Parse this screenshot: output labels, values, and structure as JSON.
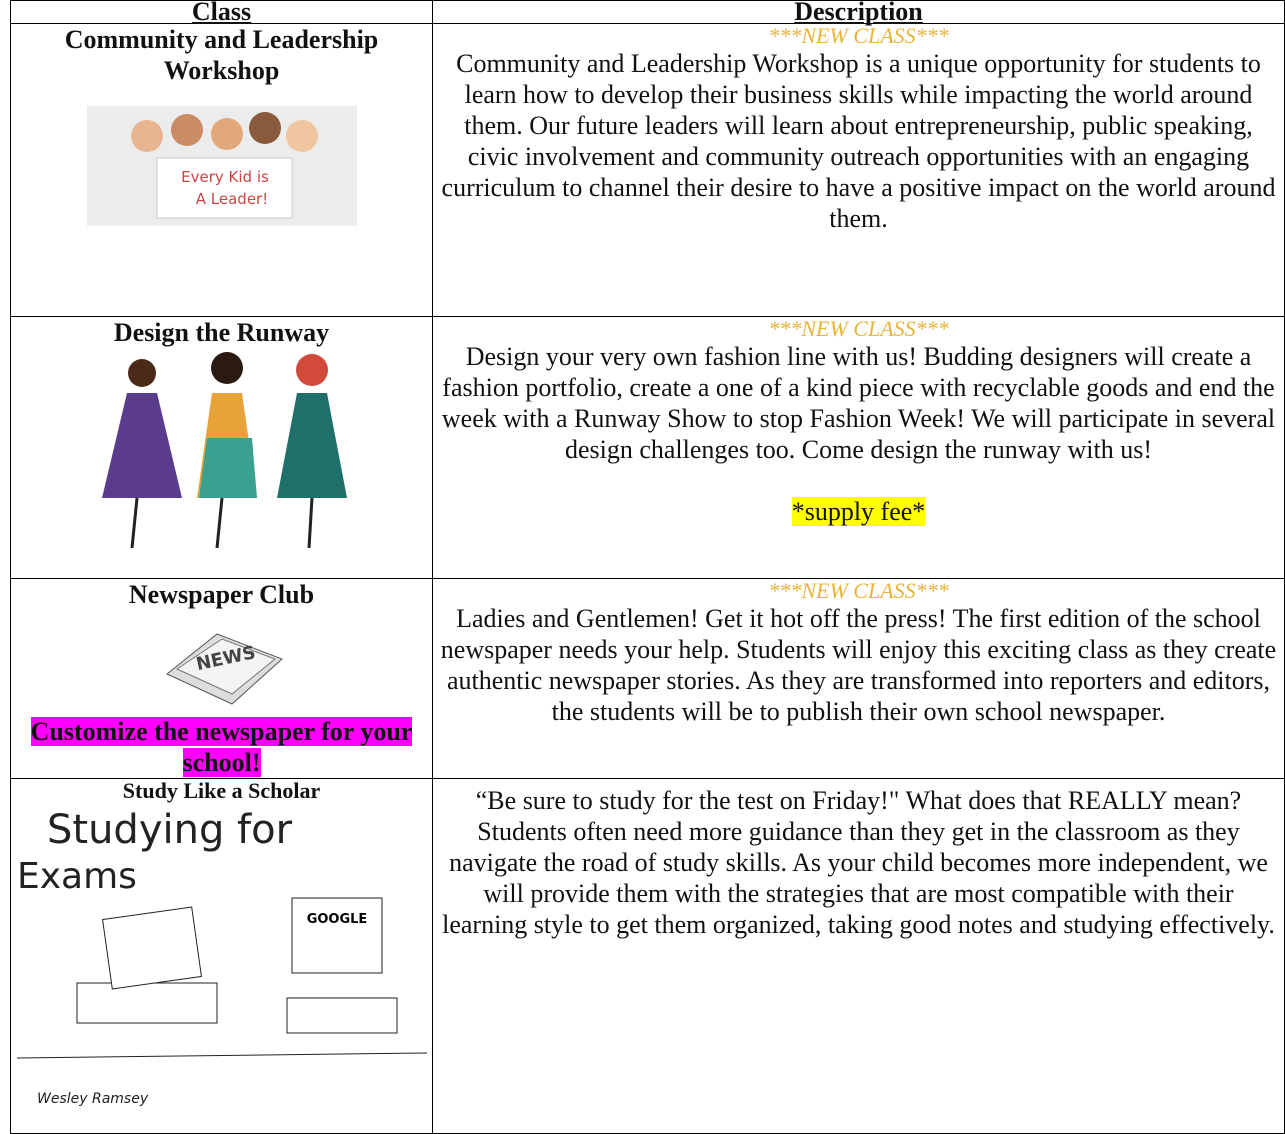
{
  "table": {
    "header": [
      "Class",
      "Description"
    ],
    "rows": [
      {
        "class": "Community and Leadership Workshop",
        "tag": "***NEW CLASS***",
        "image_text": [
          "Every Kid is",
          "A Leader!"
        ],
        "description": "Community and Leadership Workshop is a unique opportunity for students to learn how to develop their business skills while impacting the world around them. Our future leaders will learn about entrepreneurship, public speaking, civic involvement and community outreach opportunities with an engaging curriculum to channel their desire to have a positive impact on the world around them."
      },
      {
        "class": "Design the Runway",
        "tag": "***NEW CLASS***",
        "description": "Design your very own fashion line with us!  Budding designers will create a fashion portfolio, create a one of a kind piece with recyclable goods and end the week with a Runway Show to stop Fashion Week!  We will participate in several design challenges too.  Come design the runway with us!",
        "note": "*supply fee*"
      },
      {
        "class": "Newspaper Club",
        "tag": "***NEW CLASS***",
        "image_text": [
          "NEWS"
        ],
        "note": "Customize the newspaper for your school!",
        "description": "Ladies and Gentlemen! Get it hot off the press! The first edition of the school newspaper needs your help. Students will enjoy this exciting class as they create authentic newspaper stories. As they are transformed into reporters and editors, the students will be to publish their own school newspaper."
      },
      {
        "class": "Study Like a Scholar",
        "image_text": [
          "Studying for",
          "Exams",
          "GOOGLE",
          "Wesley Ramsey"
        ],
        "description": "“Be sure to study for the test on Friday!\" What does that REALLY mean? Students often need more guidance than they get in the classroom as they navigate the road of study skills. As your child becomes more independent, we will provide them with the strategies that are most compatible with their learning style to get them organized, taking good notes and studying effectively."
      }
    ]
  }
}
